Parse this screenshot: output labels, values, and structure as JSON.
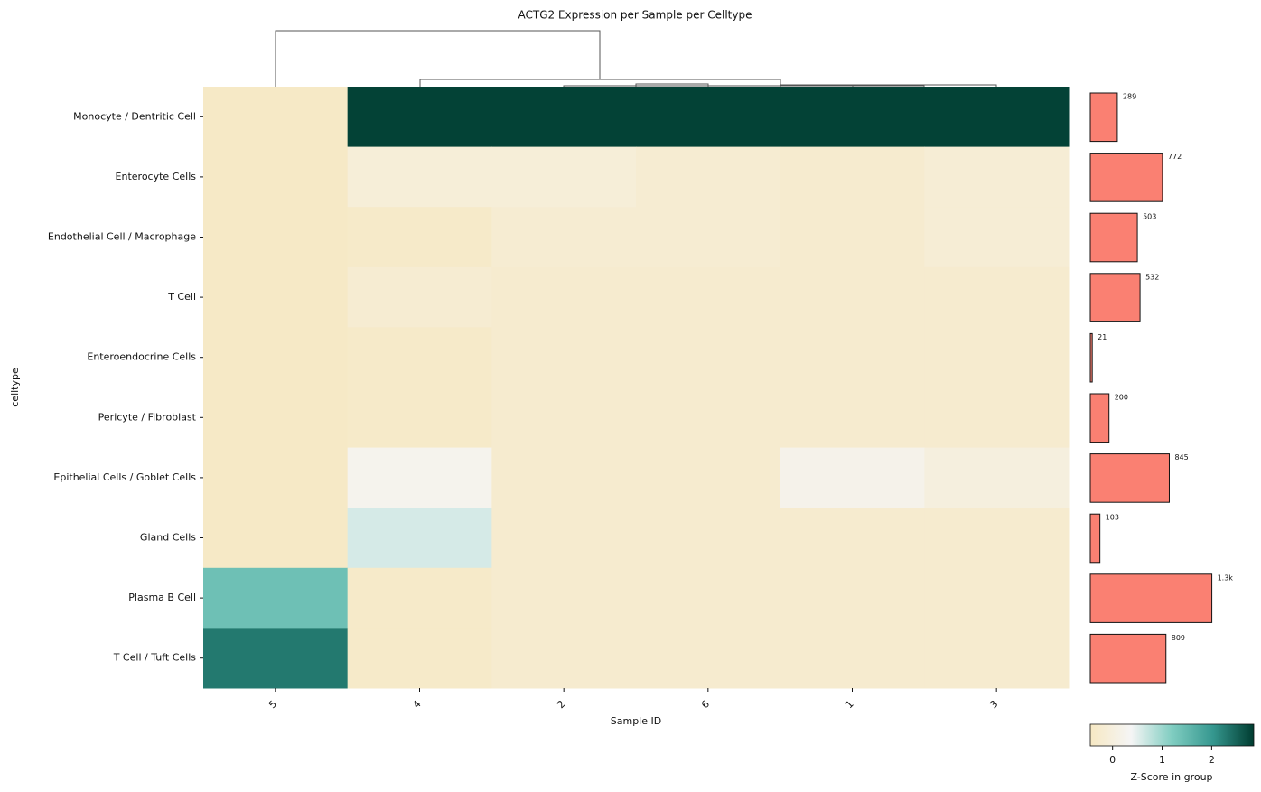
{
  "chart_data": [
    {
      "type": "heatmap",
      "title": "ACTG2 Expression per Sample per Celltype",
      "x_label": "Sample ID",
      "y_label": "celltype",
      "xcategories": [
        "5",
        "4",
        "2",
        "6",
        "1",
        "3"
      ],
      "ycategories": [
        "Monocyte / Dentritic Cell",
        "Enterocyte Cells",
        "Endothelial Cell / Macrophage",
        "T Cell",
        "Enteroendocrine Cells",
        "Pericyte / Fibroblast",
        "Epithelial Cells / Goblet Cells",
        "Gland Cells",
        "Plasma B Cell",
        "T Cell / Tuft Cells"
      ],
      "values": [
        [
          -0.4,
          2.8,
          2.8,
          2.8,
          2.8,
          2.8
        ],
        [
          -0.4,
          -0.1,
          -0.1,
          -0.2,
          -0.25,
          -0.15
        ],
        [
          -0.4,
          -0.35,
          -0.2,
          -0.2,
          -0.25,
          -0.15
        ],
        [
          -0.4,
          -0.2,
          -0.25,
          -0.25,
          -0.25,
          -0.25
        ],
        [
          -0.4,
          -0.35,
          -0.25,
          -0.25,
          -0.25,
          -0.25
        ],
        [
          -0.4,
          -0.35,
          -0.25,
          -0.25,
          -0.25,
          -0.25
        ],
        [
          -0.4,
          0.25,
          -0.25,
          -0.25,
          0.2,
          0.0
        ],
        [
          -0.4,
          0.6,
          -0.25,
          -0.25,
          -0.25,
          -0.25
        ],
        [
          1.4,
          -0.35,
          -0.25,
          -0.25,
          -0.25,
          -0.25
        ],
        [
          2.3,
          -0.35,
          -0.25,
          -0.25,
          -0.25,
          -0.25
        ]
      ],
      "colormap": [
        "#f6e8c3",
        "#f5f5f5",
        "#80cdc1",
        "#35978f",
        "#003c30"
      ],
      "zlim": [
        -0.45,
        2.85
      ],
      "zticks": [
        0,
        1,
        2
      ],
      "colorbar_label": "Z-Score in group"
    },
    {
      "type": "bar",
      "orientation": "horizontal",
      "values": [
        289,
        772,
        503,
        532,
        21,
        200,
        845,
        103,
        1300,
        809
      ],
      "value_labels": [
        "289",
        "772",
        "503",
        "532",
        "21",
        "200",
        "845",
        "103",
        "1.3k",
        "809"
      ],
      "xlim": [
        0,
        1700
      ],
      "color": "#fa8072"
    }
  ]
}
